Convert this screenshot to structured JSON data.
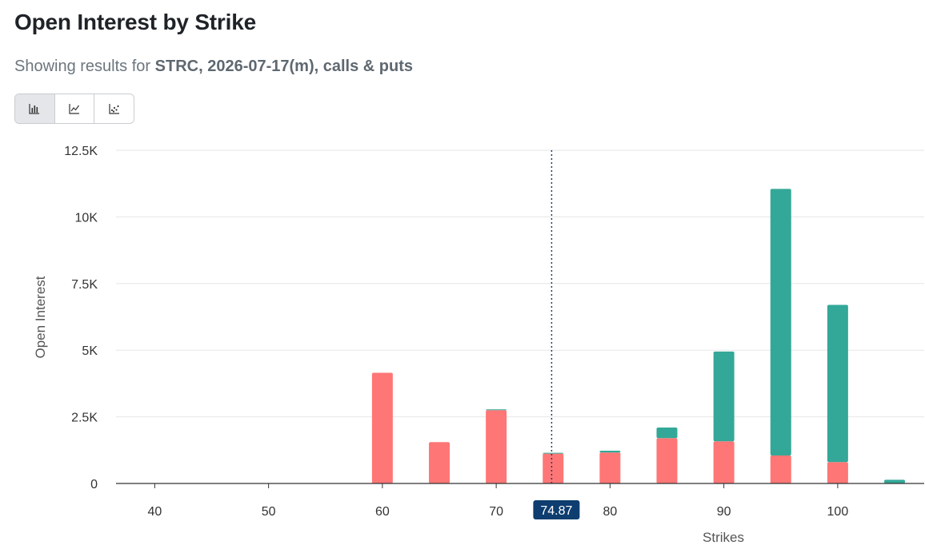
{
  "header": {
    "title": "Open Interest by Strike",
    "subtitle_prefix": "Showing results for ",
    "subtitle_bold": "STRC, 2026-07-17(m), calls & puts"
  },
  "view_toggle": {
    "buttons": [
      {
        "icon": "bar-chart-icon",
        "active": true
      },
      {
        "icon": "line-chart-icon",
        "active": false
      },
      {
        "icon": "scatter-chart-icon",
        "active": false
      }
    ]
  },
  "chart_data": {
    "type": "bar",
    "stacked": true,
    "xlabel": "Strikes",
    "ylabel": "Open Interest",
    "xlim": [
      36.6,
      107.6
    ],
    "ylim": [
      0,
      12500
    ],
    "x_ticks": [
      40,
      50,
      60,
      70,
      80,
      90,
      100
    ],
    "y_ticks": [
      0,
      2500,
      5000,
      7500,
      10000,
      12500
    ],
    "y_tick_labels": [
      "0",
      "2.5K",
      "5K",
      "7.5K",
      "10K",
      "12.5K"
    ],
    "grid": true,
    "legend": "none",
    "spot_price": 74.87,
    "spot_label": "74.87",
    "x": [
      60,
      65,
      70,
      75,
      80,
      85,
      90,
      95,
      100,
      105
    ],
    "series": [
      {
        "color": "#ff7676",
        "values": [
          4150,
          1550,
          2750,
          1120,
          1160,
          1700,
          1580,
          1050,
          800,
          0
        ]
      },
      {
        "color": "#33a898",
        "values": [
          0,
          0,
          30,
          30,
          70,
          400,
          3370,
          10000,
          5900,
          140
        ]
      }
    ]
  }
}
